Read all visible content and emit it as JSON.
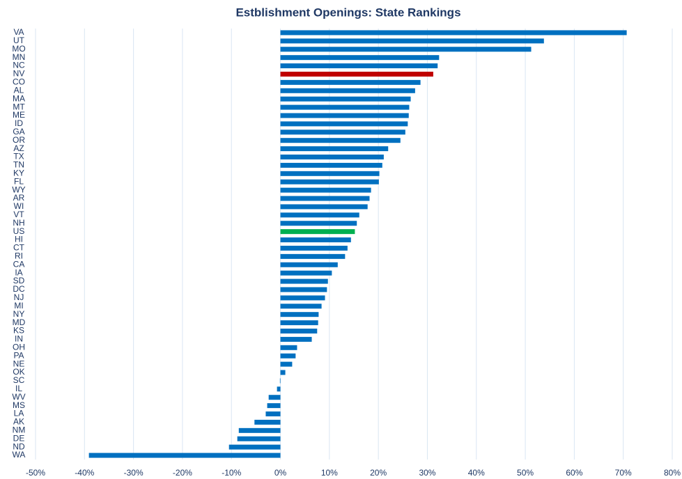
{
  "chart_data": {
    "type": "barh",
    "title": "Estblishment Openings: State Rankings",
    "categories": [
      "VA",
      "UT",
      "MO",
      "MN",
      "NC",
      "NV",
      "CO",
      "AL",
      "MA",
      "MT",
      "ME",
      "ID",
      "GA",
      "OR",
      "AZ",
      "TX",
      "TN",
      "KY",
      "FL",
      "WY",
      "AR",
      "WI",
      "VT",
      "NH",
      "US",
      "HI",
      "CT",
      "RI",
      "CA",
      "IA",
      "SD",
      "DC",
      "NJ",
      "MI",
      "NY",
      "MD",
      "KS",
      "IN",
      "OH",
      "PA",
      "NE",
      "OK",
      "SC",
      "IL",
      "WV",
      "MS",
      "LA",
      "AK",
      "NM",
      "DE",
      "ND",
      "WA"
    ],
    "values": [
      70.7,
      53.8,
      51.2,
      32.4,
      32.1,
      31.2,
      28.6,
      27.5,
      26.6,
      26.3,
      26.2,
      26.0,
      25.5,
      24.5,
      22.0,
      21.1,
      20.8,
      20.2,
      20.1,
      18.5,
      18.2,
      17.8,
      16.1,
      15.6,
      15.2,
      14.4,
      13.7,
      13.2,
      11.7,
      10.5,
      9.7,
      9.5,
      9.1,
      8.4,
      7.8,
      7.7,
      7.5,
      6.4,
      3.4,
      3.1,
      2.4,
      1.0,
      -0.1,
      -0.7,
      -2.4,
      -2.7,
      -3.0,
      -5.3,
      -8.5,
      -8.8,
      -10.5,
      -39.1
    ],
    "color": "#0070c0",
    "highlight_colors": {
      "NV": "#c00000",
      "US": "#00b050"
    },
    "xlim": [
      -50,
      80
    ],
    "xticks": [
      {
        "value": -50,
        "label": "-50%"
      },
      {
        "value": -40,
        "label": "-40%"
      },
      {
        "value": -30,
        "label": "-30%"
      },
      {
        "value": -20,
        "label": "-20%"
      },
      {
        "value": -10,
        "label": "-10%"
      },
      {
        "value": 0,
        "label": "0%"
      },
      {
        "value": 10,
        "label": "10%"
      },
      {
        "value": 20,
        "label": "20%"
      },
      {
        "value": 30,
        "label": "30%"
      },
      {
        "value": 40,
        "label": "40%"
      },
      {
        "value": 50,
        "label": "50%"
      },
      {
        "value": 60,
        "label": "60%"
      },
      {
        "value": 70,
        "label": "70%"
      },
      {
        "value": 80,
        "label": "80%"
      }
    ],
    "grid": true
  }
}
